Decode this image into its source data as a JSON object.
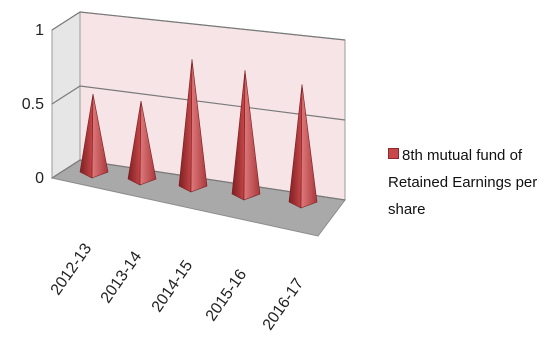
{
  "chart_data": {
    "type": "bar",
    "style": "3d-cone",
    "categories": [
      "2012-13",
      "2013-14",
      "2014-15",
      "2015-16",
      "2016-17"
    ],
    "series": [
      {
        "name": "8th mutual fund of Retained Earnings per share",
        "values": [
          0.5,
          0.5,
          0.82,
          0.8,
          0.76
        ]
      }
    ],
    "yticks": [
      "0",
      "0.5",
      "1"
    ],
    "ylim": [
      0,
      1
    ],
    "grid": true,
    "legend_position": "right",
    "colors": {
      "series": "#c8484a",
      "back_wall": "#f6e4e6",
      "floor": "#a9a9a9",
      "grid": "#7a7a7a"
    }
  }
}
